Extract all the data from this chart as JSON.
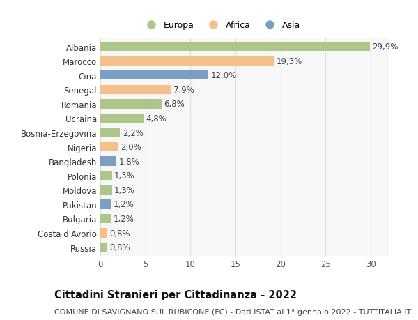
{
  "countries": [
    "Albania",
    "Marocco",
    "Cina",
    "Senegal",
    "Romania",
    "Ucraina",
    "Bosnia-Erzegovina",
    "Nigeria",
    "Bangladesh",
    "Polonia",
    "Moldova",
    "Pakistan",
    "Bulgaria",
    "Costa d'Avorio",
    "Russia"
  ],
  "values": [
    29.9,
    19.3,
    12.0,
    7.9,
    6.8,
    4.8,
    2.2,
    2.0,
    1.8,
    1.3,
    1.3,
    1.2,
    1.2,
    0.8,
    0.8
  ],
  "labels": [
    "29,9%",
    "19,3%",
    "12,0%",
    "7,9%",
    "6,8%",
    "4,8%",
    "2,2%",
    "2,0%",
    "1,8%",
    "1,3%",
    "1,3%",
    "1,2%",
    "1,2%",
    "0,8%",
    "0,8%"
  ],
  "continents": [
    "Europa",
    "Africa",
    "Asia",
    "Africa",
    "Europa",
    "Europa",
    "Europa",
    "Africa",
    "Asia",
    "Europa",
    "Europa",
    "Asia",
    "Europa",
    "Africa",
    "Europa"
  ],
  "colors": {
    "Europa": "#adc68a",
    "Africa": "#f5c08a",
    "Asia": "#7b9fc4"
  },
  "xlim": [
    0,
    32
  ],
  "xticks": [
    0,
    5,
    10,
    15,
    20,
    25,
    30
  ],
  "title": "Cittadini Stranieri per Cittadinanza - 2022",
  "subtitle": "COMUNE DI SAVIGNANO SUL RUBICONE (FC) - Dati ISTAT al 1° gennaio 2022 - TUTTITALIA.IT",
  "bg_color": "#ffffff",
  "plot_bg_color": "#f7f7f7",
  "grid_color": "#e0e0e0",
  "bar_height": 0.65,
  "label_fontsize": 8.5,
  "title_fontsize": 10.5,
  "subtitle_fontsize": 8,
  "tick_fontsize": 8.5,
  "legend_fontsize": 9
}
